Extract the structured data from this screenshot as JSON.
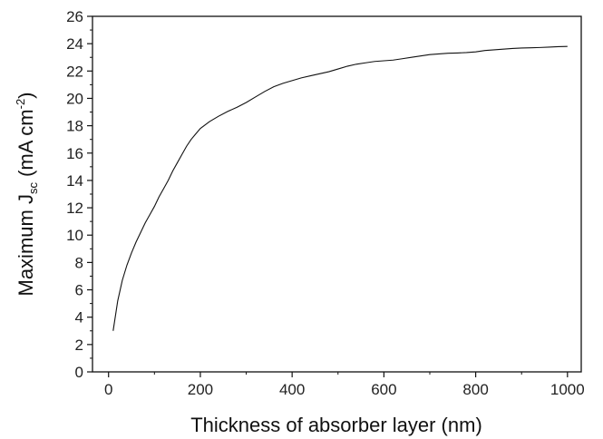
{
  "chart_data": {
    "type": "line",
    "title": "",
    "xlabel": "Thickness of absorber layer (nm)",
    "ylabel_main": "Maximum J",
    "ylabel_subscript": "sc",
    "ylabel_units_open": " (mA cm",
    "ylabel_units_superscript": "-2",
    "ylabel_units_close": ")",
    "xlim": [
      -35,
      1030
    ],
    "ylim": [
      0,
      26
    ],
    "xticks": [
      0,
      200,
      400,
      600,
      800,
      1000
    ],
    "yticks": [
      0,
      2,
      4,
      6,
      8,
      10,
      12,
      14,
      16,
      18,
      20,
      22,
      24,
      26
    ],
    "grid": false,
    "legend": "none",
    "line_color": "#111111",
    "series": [
      {
        "x": [
          10,
          20,
          30,
          40,
          50,
          60,
          70,
          80,
          90,
          100,
          110,
          120,
          130,
          140,
          150,
          160,
          170,
          180,
          190,
          200,
          220,
          240,
          260,
          280,
          300,
          320,
          340,
          360,
          380,
          400,
          420,
          440,
          460,
          480,
          500,
          520,
          540,
          560,
          580,
          600,
          620,
          640,
          660,
          680,
          700,
          720,
          740,
          760,
          780,
          800,
          820,
          840,
          860,
          880,
          900,
          920,
          940,
          960,
          980,
          1000
        ],
        "y": [
          3.0,
          5.2,
          6.7,
          7.8,
          8.7,
          9.5,
          10.2,
          10.9,
          11.5,
          12.1,
          12.8,
          13.4,
          14.0,
          14.7,
          15.3,
          15.9,
          16.5,
          17.0,
          17.4,
          17.8,
          18.3,
          18.7,
          19.05,
          19.35,
          19.7,
          20.1,
          20.5,
          20.85,
          21.1,
          21.3,
          21.5,
          21.65,
          21.8,
          21.95,
          22.15,
          22.35,
          22.5,
          22.6,
          22.7,
          22.75,
          22.8,
          22.9,
          23.0,
          23.1,
          23.2,
          23.25,
          23.3,
          23.32,
          23.35,
          23.4,
          23.5,
          23.55,
          23.6,
          23.65,
          23.68,
          23.7,
          23.72,
          23.75,
          23.78,
          23.8
        ]
      }
    ]
  }
}
